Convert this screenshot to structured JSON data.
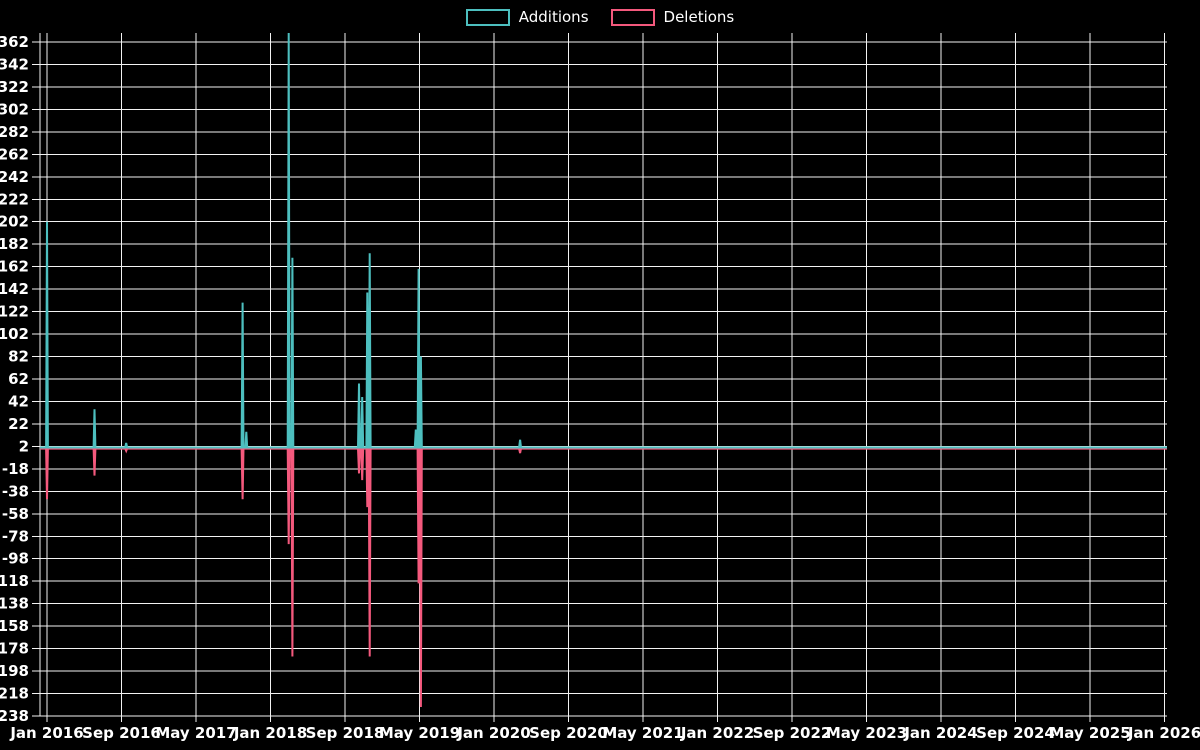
{
  "legend": {
    "items": [
      {
        "label": "Additions",
        "color": "#4dbfbf"
      },
      {
        "label": "Deletions",
        "color": "#f4597d"
      }
    ]
  },
  "chart_data": {
    "type": "line",
    "title": "",
    "xlabel": "",
    "ylabel": "",
    "grid": true,
    "legend_position": "top-center",
    "background_color": "#000000",
    "grid_color": "#f2f2f2",
    "text_color": "#ffffff",
    "ylim": [
      -238,
      362
    ],
    "y_ticks": [
      362,
      342,
      322,
      302,
      282,
      262,
      242,
      222,
      202,
      182,
      162,
      142,
      122,
      102,
      82,
      62,
      42,
      22,
      2,
      -18,
      -38,
      -58,
      -78,
      -98,
      -118,
      -138,
      -158,
      -178,
      -198,
      -218,
      -238
    ],
    "x_ticks": [
      {
        "month": 0,
        "label": "Jan 2016"
      },
      {
        "month": 8,
        "label": "Sep 2016"
      },
      {
        "month": 16,
        "label": "May 2017"
      },
      {
        "month": 24,
        "label": "Jan 2018"
      },
      {
        "month": 32,
        "label": "Sep 2018"
      },
      {
        "month": 40,
        "label": "May 2019"
      },
      {
        "month": 48,
        "label": "Jan 2020"
      },
      {
        "month": 56,
        "label": "Sep 2020"
      },
      {
        "month": 64,
        "label": "May 2021"
      },
      {
        "month": 72,
        "label": "Jan 2022"
      },
      {
        "month": 80,
        "label": "Sep 2022"
      },
      {
        "month": 88,
        "label": "May 2023"
      },
      {
        "month": 96,
        "label": "Jan 2024"
      },
      {
        "month": 104,
        "label": "Sep 2024"
      },
      {
        "month": 112,
        "label": "May 2025"
      },
      {
        "month": 120,
        "label": "Jan 2026"
      }
    ],
    "series": [
      {
        "name": "Additions",
        "color": "#4dbfbf",
        "baseline": 1,
        "points": [
          [
            -0.75,
            1
          ],
          [
            -0.1,
            1
          ],
          [
            0.0,
            202
          ],
          [
            0.1,
            1
          ],
          [
            5.0,
            1
          ],
          [
            5.1,
            35
          ],
          [
            5.2,
            1
          ],
          [
            8.4,
            1
          ],
          [
            8.5,
            5
          ],
          [
            8.6,
            1
          ],
          [
            20.9,
            1
          ],
          [
            21.0,
            130
          ],
          [
            21.1,
            1
          ],
          [
            21.3,
            1
          ],
          [
            21.4,
            15
          ],
          [
            21.5,
            1
          ],
          [
            25.85,
            1
          ],
          [
            25.95,
            370
          ],
          [
            26.05,
            1
          ],
          [
            26.25,
            1
          ],
          [
            26.35,
            170
          ],
          [
            26.45,
            1
          ],
          [
            33.4,
            1
          ],
          [
            33.5,
            58
          ],
          [
            33.6,
            1
          ],
          [
            33.75,
            1
          ],
          [
            33.85,
            46
          ],
          [
            33.95,
            1
          ],
          [
            34.3,
            1
          ],
          [
            34.4,
            139
          ],
          [
            34.5,
            1
          ],
          [
            34.55,
            1
          ],
          [
            34.65,
            174
          ],
          [
            34.75,
            1
          ],
          [
            39.5,
            1
          ],
          [
            39.6,
            17
          ],
          [
            39.7,
            1
          ],
          [
            39.8,
            1
          ],
          [
            39.9,
            160
          ],
          [
            40.0,
            1
          ],
          [
            40.05,
            1
          ],
          [
            40.15,
            82
          ],
          [
            40.25,
            1
          ],
          [
            50.7,
            1
          ],
          [
            50.8,
            8
          ],
          [
            50.9,
            1
          ],
          [
            120.27,
            1
          ]
        ]
      },
      {
        "name": "Deletions",
        "color": "#f4597d",
        "baseline": 0,
        "points": [
          [
            -0.75,
            0
          ],
          [
            -0.1,
            0
          ],
          [
            0.0,
            -45
          ],
          [
            0.1,
            0
          ],
          [
            5.0,
            0
          ],
          [
            5.1,
            -24
          ],
          [
            5.2,
            0
          ],
          [
            8.4,
            0
          ],
          [
            8.5,
            -2
          ],
          [
            8.6,
            0
          ],
          [
            20.9,
            0
          ],
          [
            21.0,
            -45
          ],
          [
            21.1,
            0
          ],
          [
            25.85,
            0
          ],
          [
            25.95,
            -85
          ],
          [
            26.05,
            0
          ],
          [
            26.25,
            0
          ],
          [
            26.35,
            -185
          ],
          [
            26.45,
            0
          ],
          [
            33.4,
            0
          ],
          [
            33.5,
            -22
          ],
          [
            33.6,
            0
          ],
          [
            33.75,
            0
          ],
          [
            33.85,
            -28
          ],
          [
            33.95,
            0
          ],
          [
            34.3,
            0
          ],
          [
            34.4,
            -52
          ],
          [
            34.5,
            0
          ],
          [
            34.55,
            0
          ],
          [
            34.65,
            -185
          ],
          [
            34.75,
            0
          ],
          [
            39.8,
            0
          ],
          [
            39.9,
            -120
          ],
          [
            40.0,
            0
          ],
          [
            40.05,
            0
          ],
          [
            40.15,
            -230
          ],
          [
            40.25,
            0
          ],
          [
            50.7,
            0
          ],
          [
            50.8,
            -4
          ],
          [
            50.9,
            0
          ],
          [
            120.27,
            0
          ]
        ]
      }
    ]
  }
}
